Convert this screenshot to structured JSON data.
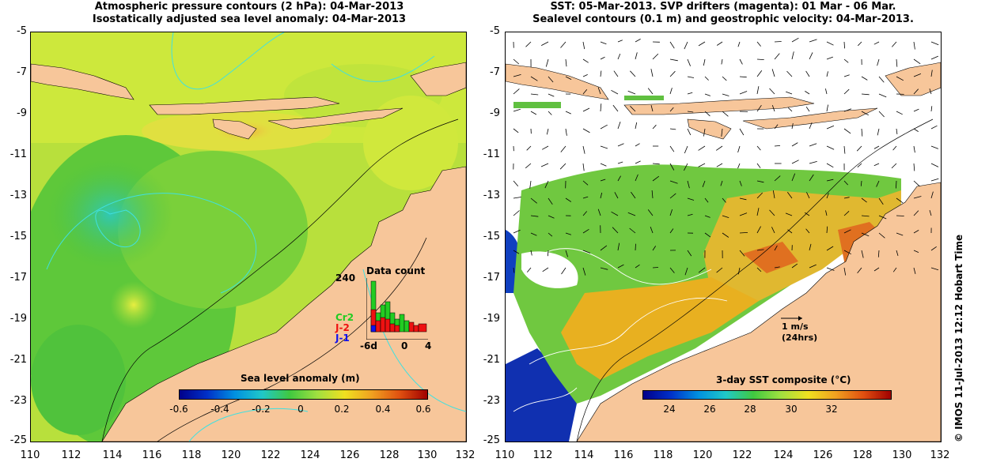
{
  "left_panel": {
    "title_line1": "Atmospheric pressure contours (2 hPa): 04-Mar-2013",
    "title_line2": "Isostatically adjusted sea level anomaly: 04-Mar-2013",
    "colorbar_label": "Sea level anomaly (m)",
    "colorbar_ticks": [
      "-0.6",
      "-0.4",
      "-0.2",
      "0",
      "0.2",
      "0.4",
      "0.6"
    ],
    "histogram": {
      "title": "Data count",
      "ymax_label": "240",
      "x_ticks": [
        "-6d",
        "0",
        "4"
      ],
      "legend": [
        {
          "name": "Cr2",
          "color": "#22cc22"
        },
        {
          "name": "J-2",
          "color": "#ee1111"
        },
        {
          "name": "J-1",
          "color": "#1111ee"
        }
      ]
    }
  },
  "right_panel": {
    "title_line1": "SST: 05-Mar-2013. SVP drifters (magenta): 01 Mar - 06 Mar.",
    "title_line2": "Sealevel contours (0.1 m) and geostrophic velocity: 04-Mar-2013.",
    "colorbar_label": "3-day SST composite (°C)",
    "colorbar_ticks": [
      "24",
      "26",
      "28",
      "30",
      "32"
    ],
    "velocity_scale": "1 m/s",
    "velocity_scale_sub": "(24hrs)"
  },
  "axes": {
    "x_ticks": [
      "110",
      "112",
      "114",
      "116",
      "118",
      "120",
      "122",
      "124",
      "126",
      "128",
      "130",
      "132"
    ],
    "y_ticks": [
      "-5",
      "-7",
      "-9",
      "-11",
      "-13",
      "-15",
      "-17",
      "-19",
      "-21",
      "-23",
      "-25"
    ]
  },
  "credit": "© IMOS 11-Jul-2013 12:12 Hobart Time",
  "colors": {
    "land": "#f7c69a",
    "sea_green": "#5ec83a",
    "sea_yellow": "#c8e63c",
    "contour_cyan": "#40e0e0"
  }
}
